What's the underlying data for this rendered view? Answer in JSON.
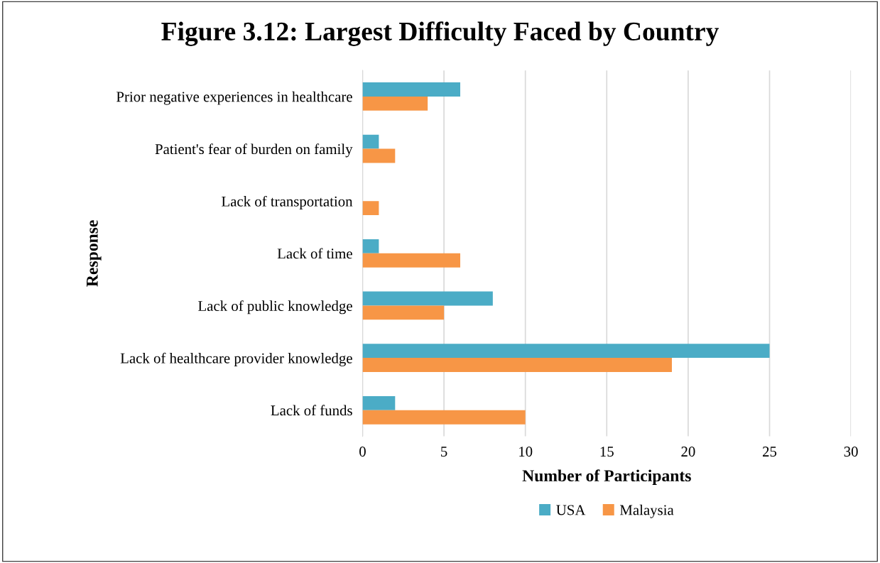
{
  "chart_data": {
    "type": "bar",
    "orientation": "horizontal",
    "title": "Figure 3.12: Largest Difficulty Faced by Country",
    "xlabel": "Number of Participants",
    "ylabel": "Response",
    "categories": [
      "Prior negative experiences in healthcare",
      "Patient's fear of burden on family",
      "Lack of transportation",
      "Lack of time",
      "Lack of public knowledge",
      "Lack of healthcare provider knowledge",
      "Lack of funds"
    ],
    "series": [
      {
        "name": "USA",
        "color": "#4bacc6",
        "values": [
          6,
          1,
          0,
          1,
          8,
          25,
          2
        ]
      },
      {
        "name": "Malaysia",
        "color": "#f79646",
        "values": [
          4,
          2,
          1,
          6,
          5,
          19,
          10
        ]
      }
    ],
    "xlim": [
      0,
      30
    ],
    "xticks": [
      0,
      5,
      10,
      15,
      20,
      25,
      30
    ],
    "grid": "x",
    "legend": "bottom"
  }
}
